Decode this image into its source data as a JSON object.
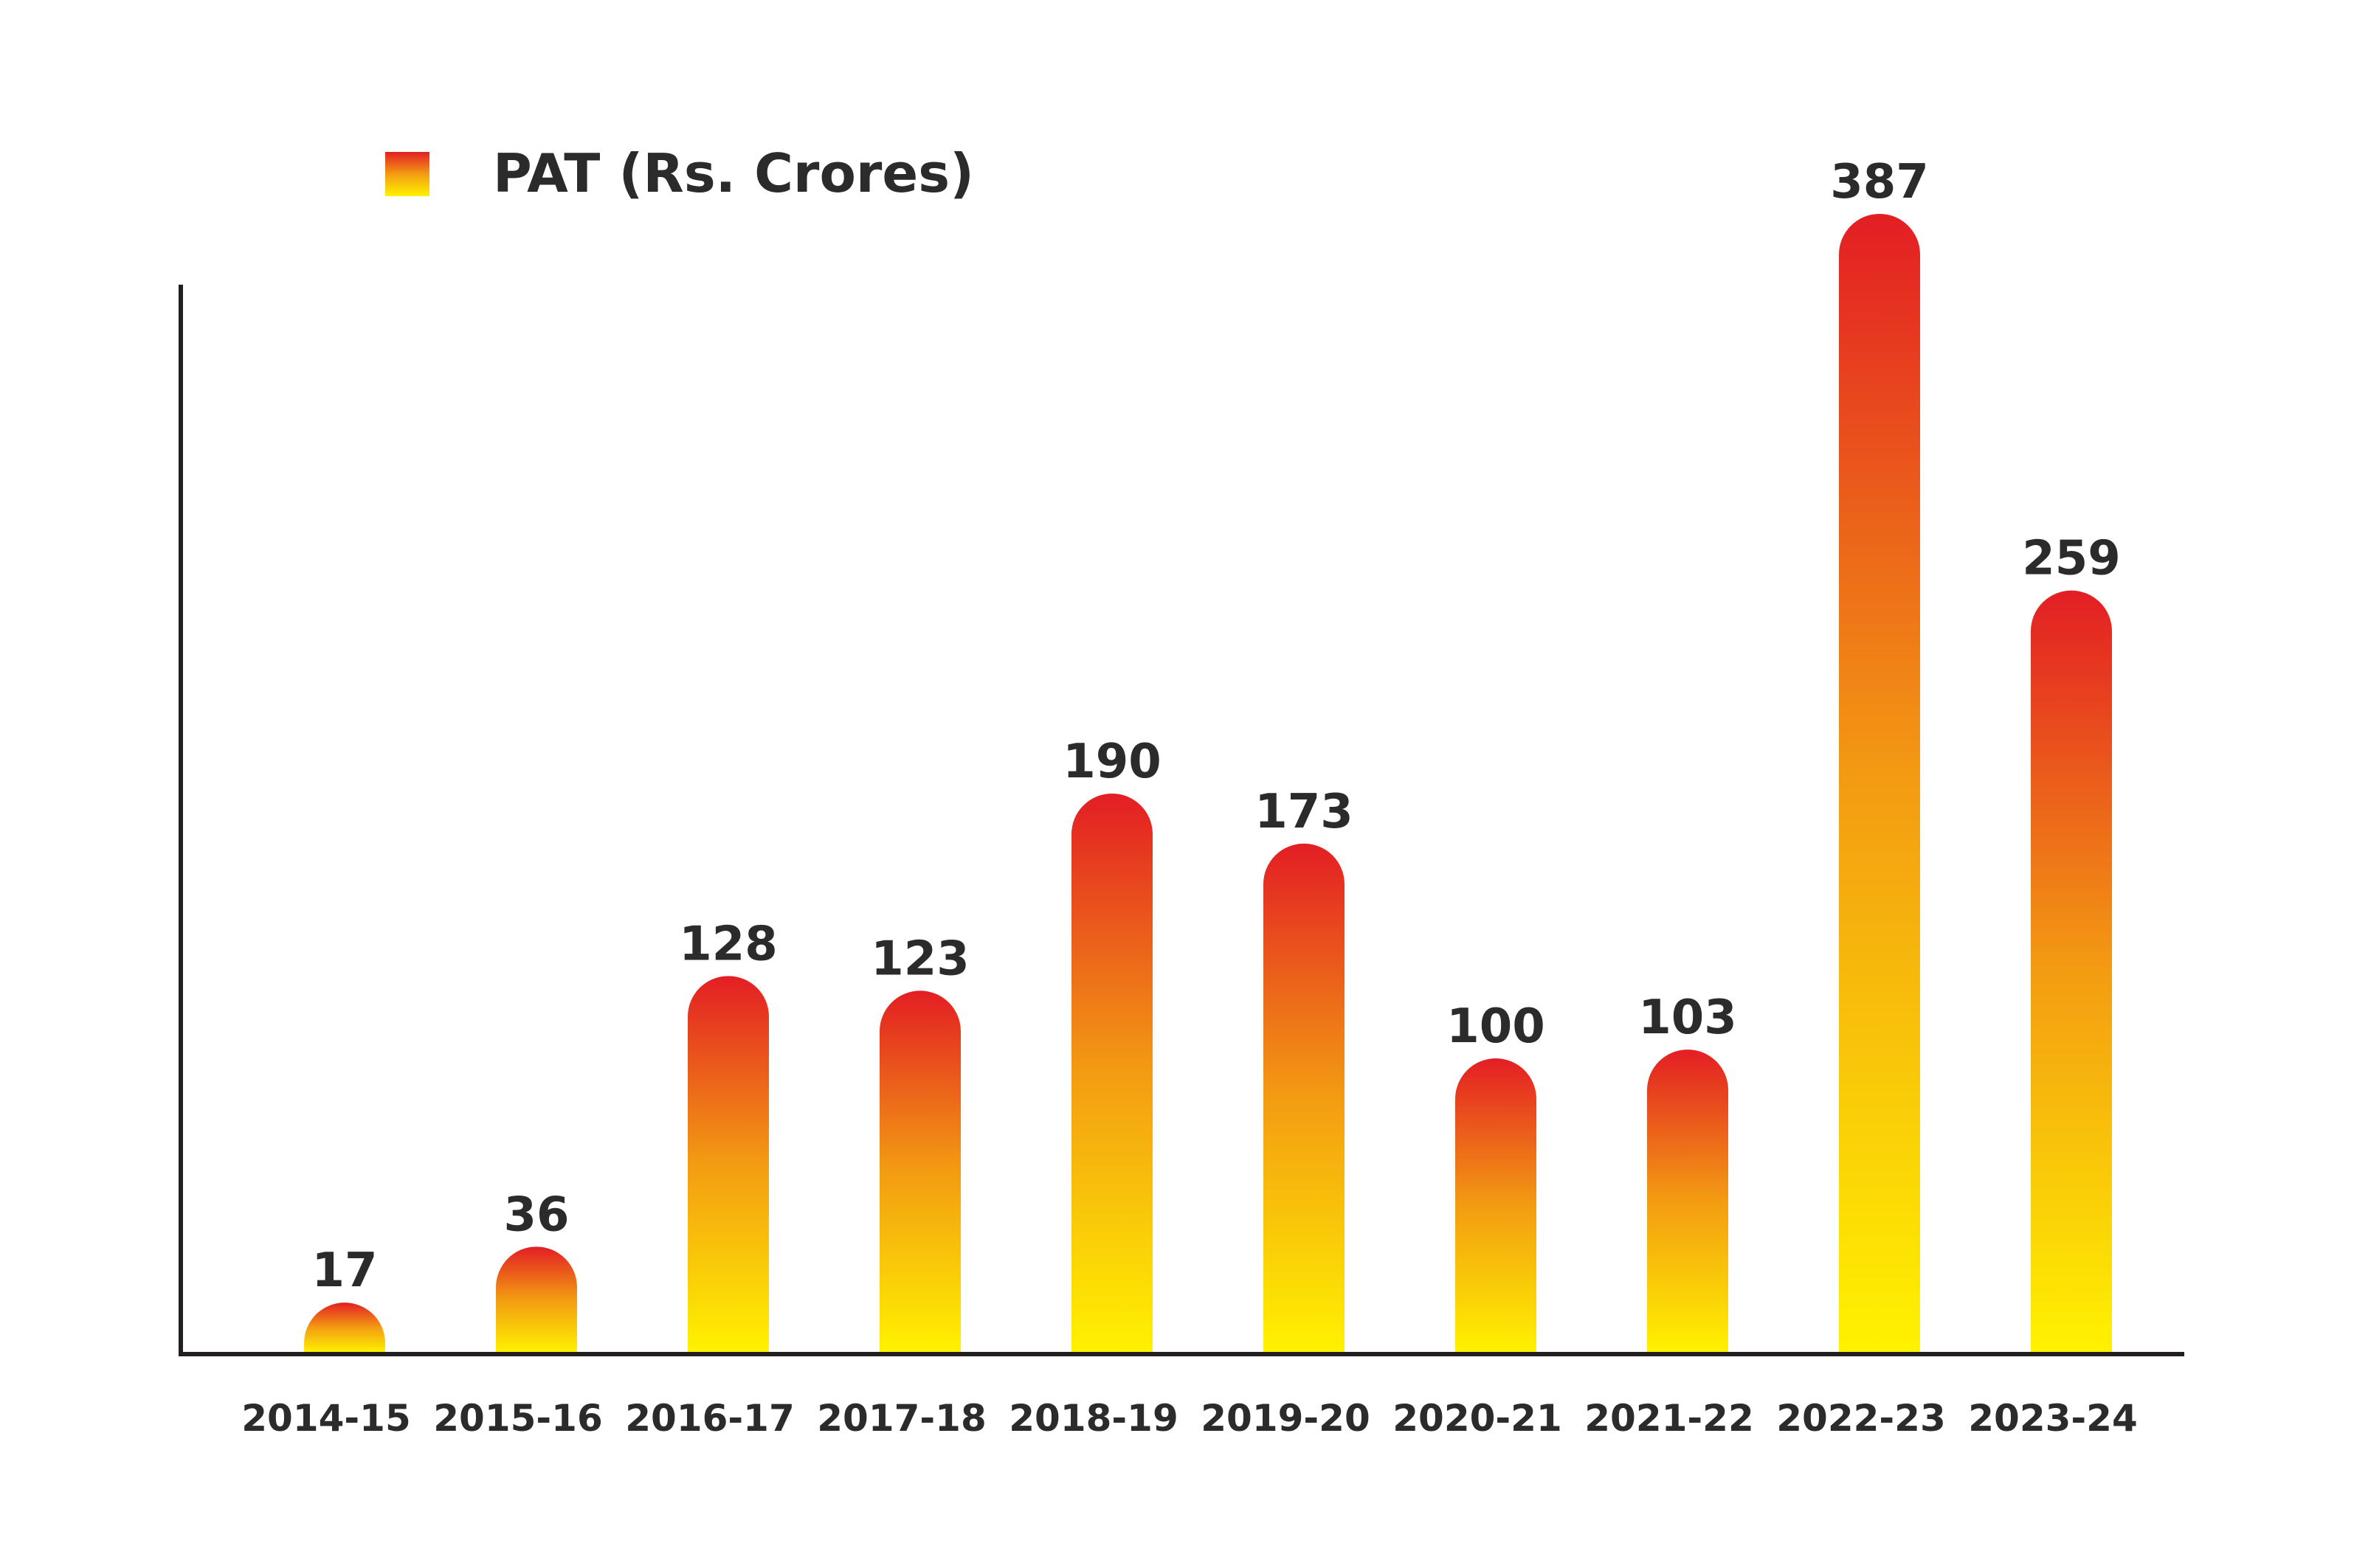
{
  "chart_data": {
    "type": "bar",
    "title": "",
    "xlabel": "",
    "ylabel": "",
    "categories": [
      "2014-15",
      "2015-16",
      "2016-17",
      "2017-18",
      "2018-19",
      "2019-20",
      "2020-21",
      "2021-22",
      "2022-23",
      "2023-24"
    ],
    "series": [
      {
        "name": "PAT (Rs. Crores)",
        "values": [
          17,
          36,
          128,
          123,
          190,
          173,
          100,
          103,
          387,
          259
        ]
      }
    ],
    "value_labels": [
      "17",
      "36",
      "128",
      "123",
      "190",
      "173",
      "100",
      "103",
      "387",
      "259"
    ],
    "ylim": [
      0,
      387
    ],
    "grid": false,
    "legend_position": "top-left",
    "colors": {
      "bar_top": "#e31e24",
      "bar_mid": "#f39c12",
      "bar_bottom": "#fff200",
      "axis": "#231f20",
      "text": "#2b2b2b"
    }
  }
}
